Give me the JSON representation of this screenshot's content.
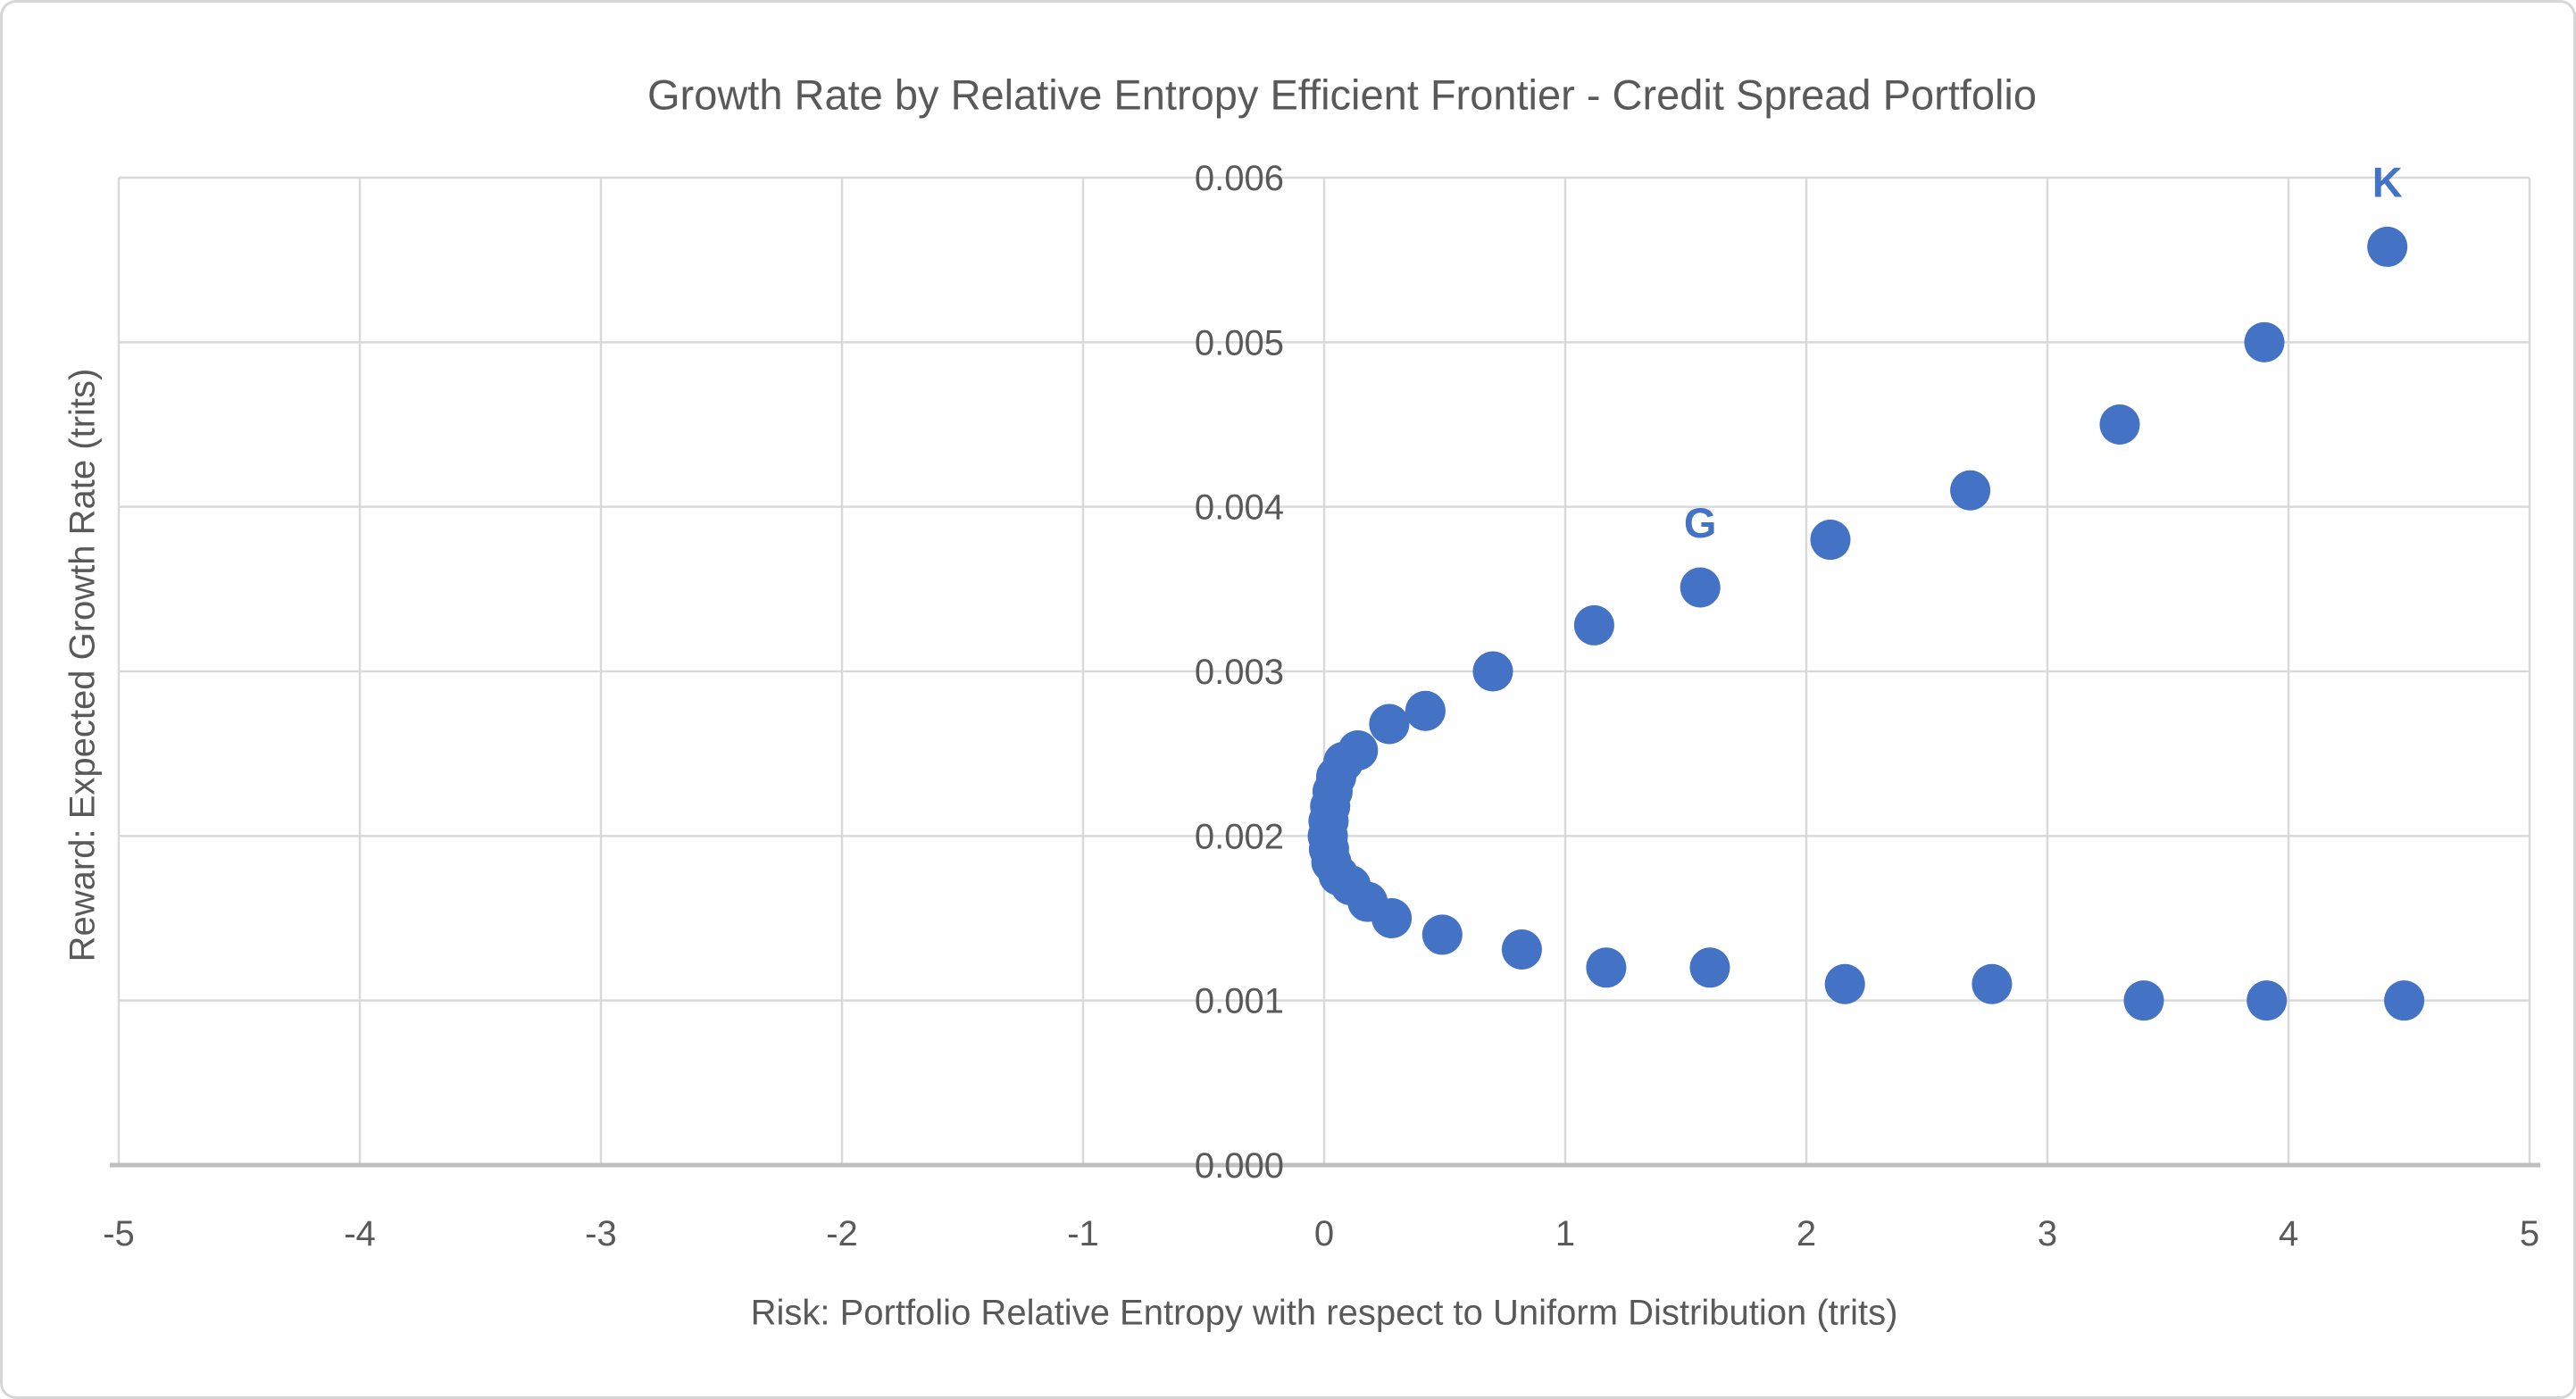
{
  "chart_data": {
    "type": "scatter",
    "title": "Growth Rate by Relative Entropy Efficient Frontier - Credit Spread Portfolio",
    "xlabel": "Risk: Portfolio Relative Entropy with respect to Uniform Distribution (trits)",
    "ylabel": "Reward: Expected Growth Rate (trits)",
    "xlim": [
      -5,
      5
    ],
    "ylim": [
      0,
      0.006
    ],
    "xticks": [
      "-5",
      "-4",
      "-3",
      "-2",
      "-1",
      "0",
      "1",
      "2",
      "3",
      "4",
      "5"
    ],
    "yticks": [
      "0.000",
      "0.001",
      "0.002",
      "0.003",
      "0.004",
      "0.005",
      "0.006"
    ],
    "grid": true,
    "legend": "none",
    "series": [
      {
        "name": "efficient-frontier",
        "points": [
          [
            4.41,
            0.00558
          ],
          [
            3.9,
            0.005
          ],
          [
            3.3,
            0.0045
          ],
          [
            2.68,
            0.0041
          ],
          [
            2.1,
            0.0038
          ],
          [
            1.56,
            0.00351
          ],
          [
            1.12,
            0.00328
          ],
          [
            0.7,
            0.003
          ],
          [
            0.42,
            0.00276
          ],
          [
            0.27,
            0.00268
          ],
          [
            0.14,
            0.00252
          ],
          [
            0.08,
            0.00245
          ],
          [
            0.05,
            0.00236
          ],
          [
            0.035,
            0.00227
          ],
          [
            0.025,
            0.00218
          ],
          [
            0.018,
            0.00209
          ],
          [
            0.015,
            0.002
          ],
          [
            0.02,
            0.00192
          ],
          [
            0.03,
            0.00184
          ],
          [
            0.06,
            0.00176
          ],
          [
            0.11,
            0.0017
          ],
          [
            0.18,
            0.0016
          ],
          [
            0.28,
            0.0015
          ],
          [
            0.49,
            0.0014
          ],
          [
            0.82,
            0.00131
          ],
          [
            1.17,
            0.0012
          ],
          [
            1.6,
            0.0012
          ],
          [
            2.16,
            0.0011
          ],
          [
            2.77,
            0.0011
          ],
          [
            3.4,
            0.001
          ],
          [
            3.91,
            0.001
          ],
          [
            4.48,
            0.001
          ]
        ]
      }
    ],
    "annotations": [
      {
        "label": "G",
        "x": 1.56,
        "y": 0.00351
      },
      {
        "label": "K",
        "x": 4.41,
        "y": 0.00558
      }
    ],
    "colors": {
      "marker": "#4472C4",
      "annotation_text": "#4472C4",
      "gridline": "#D9D9D9",
      "axis_line": "#BFBFBF",
      "text": "#595959",
      "background": "#FFFFFF"
    }
  }
}
